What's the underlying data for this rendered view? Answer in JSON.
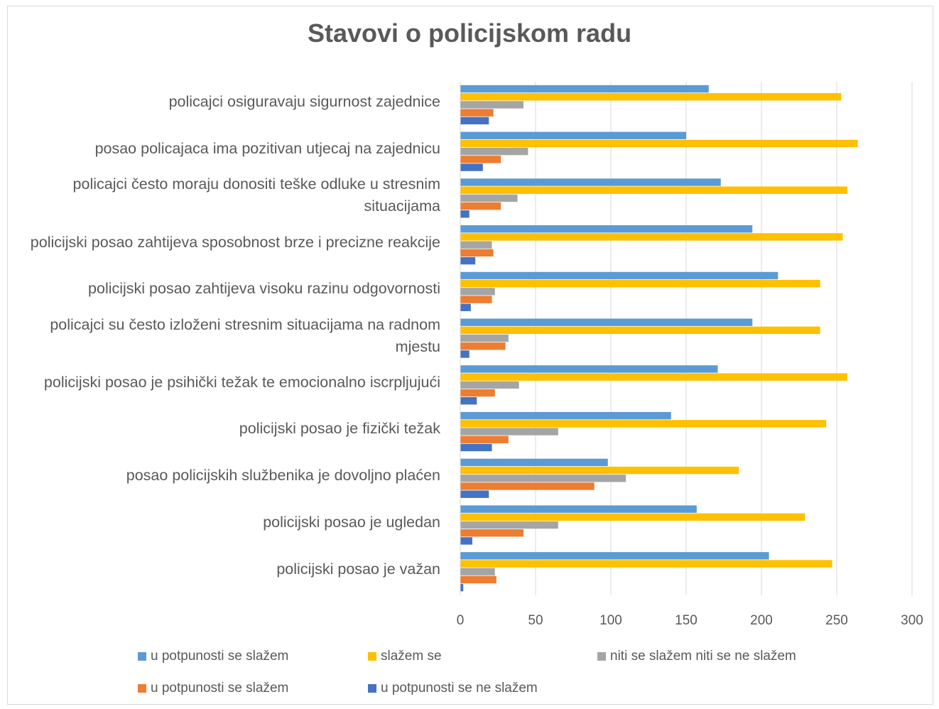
{
  "chart_data": {
    "type": "bar",
    "orientation": "horizontal",
    "title": "Stavovi o policijskom radu",
    "xlim": [
      0,
      300
    ],
    "x_ticks": [
      "0",
      "50",
      "100",
      "150",
      "200",
      "250",
      "300"
    ],
    "grid": "vertical",
    "legend_position": "bottom",
    "categories": [
      "policijski posao je važan",
      "policijski posao je ugledan",
      "posao policijskih službenika je dovoljno plaćen",
      "policijski posao je fizički težak",
      "policijski posao je psihički težak te emocionalno iscrpljujući",
      "policajci su često izloženi stresnim situacijama na radnom mjestu",
      "policijski posao zahtijeva visoku razinu odgovornosti",
      "policijski posao zahtijeva sposobnost brze i precizne reakcije",
      "policajci često moraju donositi teške odluke u stresnim situacijama",
      "posao policajaca ima pozitivan utjecaj na zajednicu",
      "policajci osiguravaju sigurnost zajednice"
    ],
    "series": [
      {
        "name": "u potpunosti se slažem",
        "color": "#5b9bd5",
        "values": [
          205,
          157,
          98,
          140,
          171,
          194,
          211,
          194,
          173,
          150,
          165
        ]
      },
      {
        "name": "slažem se",
        "color": "#ffc000",
        "values": [
          247,
          229,
          185,
          243,
          257,
          239,
          239,
          254,
          257,
          264,
          253
        ]
      },
      {
        "name": "niti se slažem niti se ne slažem",
        "color": "#a5a5a5",
        "values": [
          23,
          65,
          110,
          65,
          39,
          32,
          23,
          21,
          38,
          45,
          42
        ]
      },
      {
        "name": "u potpunosti se slažem",
        "color": "#ed7d31",
        "values": [
          24,
          42,
          89,
          32,
          23,
          30,
          21,
          22,
          27,
          27,
          22
        ]
      },
      {
        "name": "u potpunosti se ne slažem",
        "color": "#4472c4",
        "values": [
          2,
          8,
          19,
          21,
          11,
          6,
          7,
          10,
          6,
          15,
          19
        ]
      }
    ]
  }
}
